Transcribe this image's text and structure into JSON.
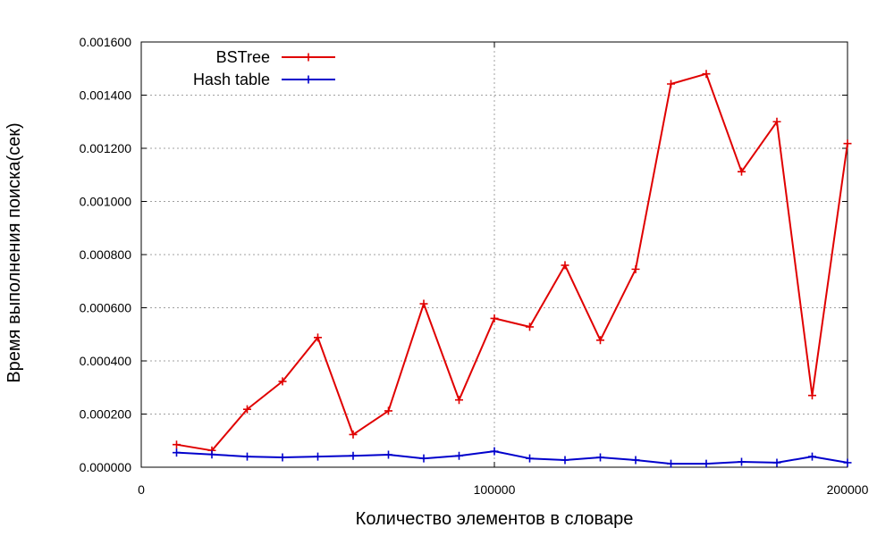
{
  "chart_data": {
    "type": "line",
    "xlabel": "Количество элементов в словаре",
    "ylabel": "Время выполнения поиска(сек)",
    "xlim": [
      0,
      200000
    ],
    "ylim": [
      0,
      0.0016
    ],
    "x_ticks": [
      {
        "value": 0,
        "label": "0"
      },
      {
        "value": 100000,
        "label": "100000"
      },
      {
        "value": 200000,
        "label": "200000"
      }
    ],
    "y_ticks": [
      {
        "value": 0,
        "label": "0.000000"
      },
      {
        "value": 0.0002,
        "label": "0.000200"
      },
      {
        "value": 0.0004,
        "label": "0.000400"
      },
      {
        "value": 0.0006,
        "label": "0.000600"
      },
      {
        "value": 0.0008,
        "label": "0.000800"
      },
      {
        "value": 0.001,
        "label": "0.001000"
      },
      {
        "value": 0.0012,
        "label": "0.001200"
      },
      {
        "value": 0.0014,
        "label": "0.001400"
      },
      {
        "value": 0.0016,
        "label": "0.001600"
      }
    ],
    "grid": true,
    "legend_position": "top-left",
    "x": [
      10000,
      20000,
      30000,
      40000,
      50000,
      60000,
      70000,
      80000,
      90000,
      100000,
      110000,
      120000,
      130000,
      140000,
      150000,
      160000,
      170000,
      180000,
      190000,
      200000
    ],
    "series": [
      {
        "name": "BSTree",
        "color": "#e00000",
        "values": [
          8.5e-05,
          6.3e-05,
          0.000218,
          0.000323,
          0.000488,
          0.000123,
          0.000212,
          0.000615,
          0.000253,
          0.00056,
          0.000528,
          0.00076,
          0.000478,
          0.000745,
          0.001442,
          0.00148,
          0.001112,
          0.0013,
          0.00027,
          0.001218
        ]
      },
      {
        "name": "Hash table",
        "color": "#0000cc",
        "values": [
          5.5e-05,
          4.8e-05,
          4e-05,
          3.7e-05,
          4e-05,
          4.3e-05,
          4.7e-05,
          3.3e-05,
          4.3e-05,
          6e-05,
          3.3e-05,
          2.7e-05,
          3.7e-05,
          2.7e-05,
          1.3e-05,
          1.3e-05,
          2e-05,
          1.7e-05,
          4e-05,
          1.7e-05
        ]
      }
    ]
  }
}
